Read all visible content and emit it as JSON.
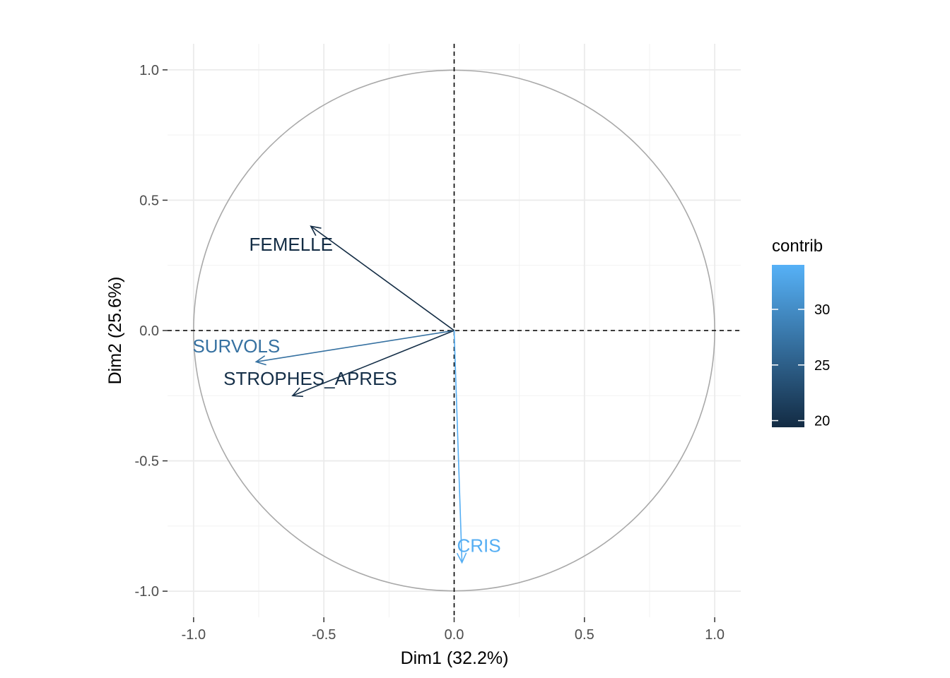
{
  "chart_data": {
    "type": "scatter",
    "subtype": "pca-variable-correlation-circle",
    "title": "",
    "xlabel": "Dim1 (32.2%)",
    "ylabel": "Dim2 (25.6%)",
    "xlim": [
      -1.1,
      1.1
    ],
    "ylim": [
      -1.1,
      1.1
    ],
    "x_ticks": [
      -1.0,
      -0.5,
      0.0,
      0.5,
      1.0
    ],
    "x_tick_labels": [
      "-1.0",
      "-0.5",
      "0.0",
      "0.5",
      "1.0"
    ],
    "y_ticks": [
      -1.0,
      -0.5,
      0.0,
      0.5,
      1.0
    ],
    "y_tick_labels": [
      "-1.0",
      "-0.5",
      "0.0",
      "0.5",
      "1.0"
    ],
    "grid": true,
    "unit_circle": true,
    "reference_lines": "dashed lines at x=0 and y=0",
    "variables": [
      {
        "name": "FEMELLE",
        "x": -0.55,
        "y": 0.4,
        "contrib": 19.5
      },
      {
        "name": "SURVOLS",
        "x": -0.76,
        "y": -0.12,
        "contrib": 27.0
      },
      {
        "name": "STROPHES_APRES",
        "x": -0.62,
        "y": -0.25,
        "contrib": 19.8
      },
      {
        "name": "CRIS",
        "x": 0.03,
        "y": -0.89,
        "contrib": 33.7
      }
    ],
    "legend": {
      "title": "contrib",
      "placement": "right",
      "min": 19.4,
      "max": 34.0,
      "ticks": [
        20,
        25,
        30
      ],
      "tick_labels": [
        "20",
        "25",
        "30"
      ],
      "color_low": "#132b43",
      "color_high": "#56b1f7"
    }
  }
}
